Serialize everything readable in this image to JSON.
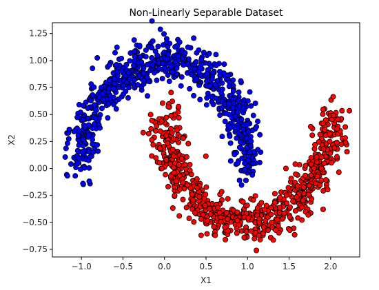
{
  "chart_data": {
    "type": "scatter",
    "title": "Non-Linearly Separable Dataset",
    "xlabel": "X1",
    "ylabel": "X2",
    "xlim": [
      -1.35,
      2.35
    ],
    "ylim": [
      -0.82,
      1.35
    ],
    "xticks": [
      "-1.0",
      "-0.5",
      "0.0",
      "0.5",
      "1.0",
      "1.5",
      "2.0"
    ],
    "yticks": [
      "-0.75",
      "-0.50",
      "-0.25",
      "0.00",
      "0.25",
      "0.50",
      "0.75",
      "1.00",
      "1.25"
    ],
    "grid": false,
    "legend": "none",
    "point_count_per_series": 750,
    "noise": 0.1,
    "series": [
      {
        "shape": "upper-moon",
        "color": "#0000ff",
        "edge_color": "#000000",
        "center": [
          0.0,
          0.0
        ],
        "radius": 1.0,
        "angle_range_deg": [
          0,
          180
        ]
      },
      {
        "shape": "lower-moon",
        "color": "#ff0000",
        "edge_color": "#000000",
        "center": [
          1.0,
          0.5
        ],
        "radius": 1.0,
        "angle_range_deg": [
          180,
          360
        ]
      }
    ]
  }
}
